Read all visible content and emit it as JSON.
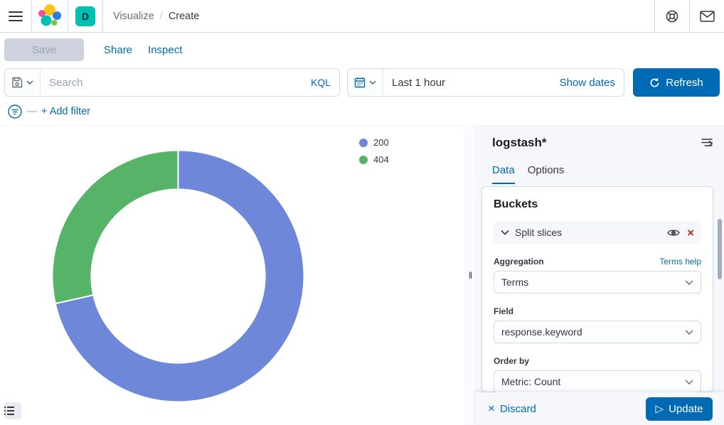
{
  "header": {
    "breadcrumb_section": "Visualize",
    "breadcrumb_separator": "/",
    "breadcrumb_current": "Create",
    "space_badge": "D"
  },
  "toolbar": {
    "save_label": "Save",
    "share_label": "Share",
    "inspect_label": "Inspect"
  },
  "query_bar": {
    "search_placeholder": "Search",
    "kql_label": "KQL",
    "time_range": "Last 1 hour",
    "show_dates_label": "Show dates",
    "refresh_label": "Refresh"
  },
  "filter_bar": {
    "add_filter_label": "+ Add filter"
  },
  "chart": {
    "legend": [
      {
        "label": "200",
        "color": "#6F87D8"
      },
      {
        "label": "404",
        "color": "#55B467"
      }
    ]
  },
  "chart_data": {
    "type": "pie",
    "subtype": "donut",
    "categories": [
      "200",
      "404"
    ],
    "values": [
      71.5,
      28.5
    ],
    "values_note": "estimated percent of total from slice angles",
    "colors": [
      "#6F87D8",
      "#55B467"
    ],
    "start_angle_deg": 0,
    "direction": "clockwise",
    "inner_radius_ratio": 0.69,
    "legend_position": "top-right",
    "title": "",
    "xlabel": "",
    "ylabel": ""
  },
  "sidebar": {
    "index_pattern": "logstash*",
    "tabs": [
      {
        "label": "Data"
      },
      {
        "label": "Options"
      }
    ],
    "buckets": {
      "heading": "Buckets",
      "bucket_label": "Split slices",
      "aggregation_label": "Aggregation",
      "aggregation_help": "Terms help",
      "aggregation_value": "Terms",
      "field_label": "Field",
      "field_value": "response.keyword",
      "order_by_label": "Order by",
      "order_by_value": "Metric: Count"
    },
    "actions": {
      "discard_label": "Discard",
      "update_label": "Update"
    }
  },
  "icons": {
    "close": "×",
    "play": "▷",
    "resize_handle": "‖"
  },
  "colors": {
    "accent_blue": "#006BB4",
    "danger_red": "#BD271E",
    "badge_teal": "#00BFB3",
    "logo": {
      "yellow": "#FEC514",
      "pink": "#F04E98",
      "teal": "#00BFB3",
      "blue": "#2F7DE1",
      "green": "#7DC142"
    }
  }
}
